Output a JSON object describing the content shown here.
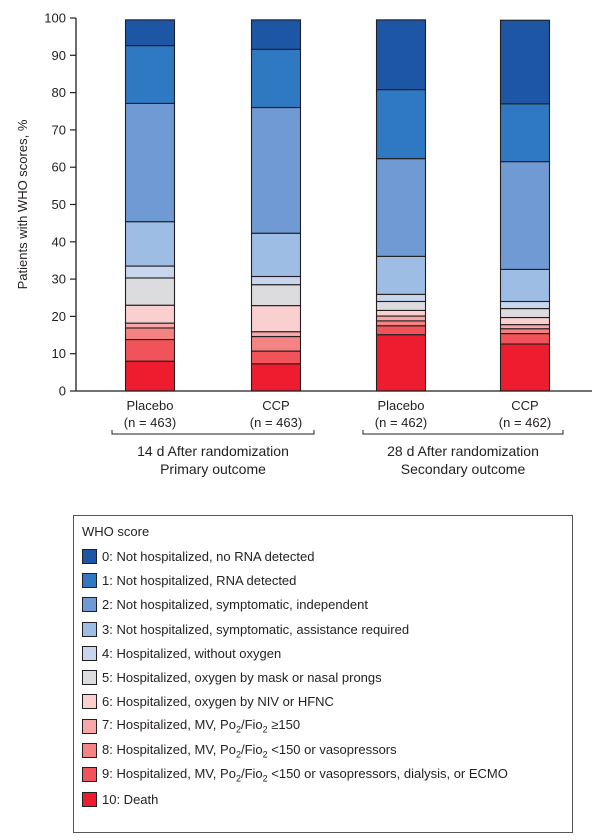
{
  "chart_data": {
    "type": "bar",
    "stacked": true,
    "ylabel": "Patients with WHO scores, %",
    "ylim": [
      0,
      100
    ],
    "yticks": [
      0,
      10,
      20,
      30,
      40,
      50,
      60,
      70,
      80,
      90,
      100
    ],
    "grid": false,
    "categories": [
      {
        "name": "Placebo",
        "n_label": "(n = 463)",
        "group": 0
      },
      {
        "name": "CCP",
        "n_label": "(n = 463)",
        "group": 0
      },
      {
        "name": "Placebo",
        "n_label": "(n = 462)",
        "group": 1
      },
      {
        "name": "CCP",
        "n_label": "(n = 462)",
        "group": 1
      }
    ],
    "groups": [
      {
        "line1": "14 d After randomization",
        "line2": "Primary outcome"
      },
      {
        "line1": "28 d After randomization",
        "line2": "Secondary outcome"
      }
    ],
    "series": [
      {
        "score": 10,
        "name": "10: Death",
        "color": "#ed1c2e",
        "values": [
          8.0,
          7.3,
          15.1,
          12.6
        ]
      },
      {
        "score": 9,
        "name": "9: Hospitalized, MV, Po2/Fio2 <150 or vasopressors, dialysis, or ECMO",
        "color": "#f0545a",
        "values": [
          5.8,
          3.4,
          2.4,
          2.8
        ]
      },
      {
        "score": 8,
        "name": "8: Hospitalized, MV, Po2/Fio2 <150 or vasopressors",
        "color": "#f48383",
        "values": [
          3.1,
          3.9,
          1.3,
          1.3
        ]
      },
      {
        "score": 7,
        "name": "7: Hospitalized, MV, Po2/Fio2 ≥150",
        "color": "#f7a8a8",
        "values": [
          1.3,
          1.3,
          1.3,
          1.1
        ]
      },
      {
        "score": 6,
        "name": "6: Hospitalized, oxygen by NIV or HFNC",
        "color": "#f9cfd0",
        "values": [
          4.8,
          7.0,
          1.5,
          1.9
        ]
      },
      {
        "score": 5,
        "name": "5: Hospitalized, oxygen by mask or nasal prongs",
        "color": "#dcdcdf",
        "values": [
          7.3,
          5.6,
          2.4,
          2.4
        ]
      },
      {
        "score": 4,
        "name": "4: Hospitalized, without oxygen",
        "color": "#c7d6ec",
        "values": [
          3.2,
          2.2,
          1.9,
          1.9
        ]
      },
      {
        "score": 3,
        "name": "3: Not hospitalized, symptomatic, assistance required",
        "color": "#9dbde5",
        "values": [
          11.9,
          11.6,
          10.2,
          8.6
        ]
      },
      {
        "score": 2,
        "name": "2: Not hospitalized, symptomatic, independent",
        "color": "#6f9ad3",
        "values": [
          31.7,
          33.7,
          26.2,
          28.9
        ]
      },
      {
        "score": 1,
        "name": "1: Not hospitalized, RNA detected",
        "color": "#2f78c2",
        "values": [
          15.5,
          15.6,
          18.5,
          15.5
        ]
      },
      {
        "score": 0,
        "name": "0: Not hospitalized, no RNA detected",
        "color": "#1c56a5",
        "values": [
          6.9,
          7.9,
          18.7,
          22.4
        ]
      }
    ]
  },
  "legend": {
    "title": "WHO score",
    "items": [
      {
        "color": "#1c56a5",
        "pre": "0: Not hospitalized, no RNA detected"
      },
      {
        "color": "#2f78c2",
        "pre": "1: Not hospitalized, RNA detected"
      },
      {
        "color": "#6f9ad3",
        "pre": "2: Not hospitalized, symptomatic, independent"
      },
      {
        "color": "#9dbde5",
        "pre": "3: Not hospitalized, symptomatic, assistance required"
      },
      {
        "color": "#c7d6ec",
        "pre": "4: Hospitalized, without oxygen"
      },
      {
        "color": "#dcdcdf",
        "pre": "5: Hospitalized, oxygen by mask or nasal prongs"
      },
      {
        "color": "#f9cfd0",
        "pre": "6: Hospitalized, oxygen by NIV or HFNC"
      },
      {
        "color": "#f7a8a8",
        "pre": "7: Hospitalized, MV, Po",
        "sub1": "2",
        "mid": "/Fio",
        "sub2": "2",
        "post": " ≥150"
      },
      {
        "color": "#f48383",
        "pre": "8: Hospitalized, MV, Po",
        "sub1": "2",
        "mid": "/Fio",
        "sub2": "2",
        "post": " <150 or vasopressors"
      },
      {
        "color": "#f0545a",
        "pre": "9: Hospitalized, MV, Po",
        "sub1": "2",
        "mid": "/Fio",
        "sub2": "2",
        "post": " <150 or vasopressors, dialysis, or ECMO"
      },
      {
        "color": "#ed1c2e",
        "pre": "10: Death"
      }
    ]
  }
}
